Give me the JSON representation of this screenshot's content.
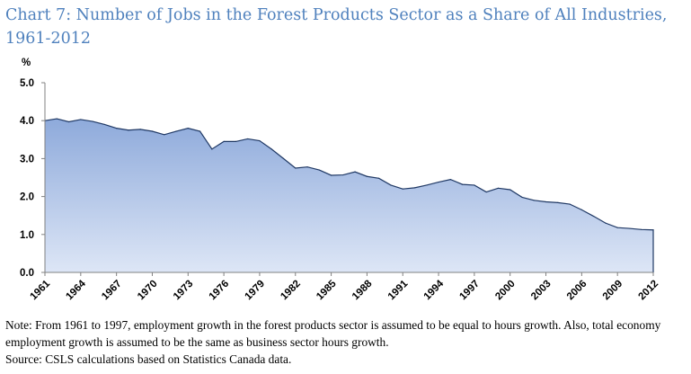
{
  "title": "Chart 7: Number of Jobs in the Forest Products Sector as a Share of All Industries, 1961-2012",
  "note": {
    "line1": "Note: From 1961 to 1997, employment growth in the forest products sector is assumed to be equal to hours growth. Also, total economy employment growth is assumed to be the same as business sector hours growth.",
    "source": "Source: CSLS calculations based on Statistics Canada data."
  },
  "colors": {
    "fill_top": "#8eaadb",
    "fill_bottom": "#dde6f6",
    "line": "#1f3864",
    "title": "#4f81bd"
  },
  "chart_data": {
    "type": "area",
    "ylabel": "%",
    "xlabel": "",
    "ylim": [
      0,
      5
    ],
    "yticks": [
      "0.0",
      "1.0",
      "2.0",
      "3.0",
      "4.0",
      "5.0"
    ],
    "xticks": [
      "1961",
      "1964",
      "1967",
      "1970",
      "1973",
      "1976",
      "1979",
      "1982",
      "1985",
      "1988",
      "1991",
      "1994",
      "1997",
      "2000",
      "2003",
      "2006",
      "2009",
      "2012"
    ],
    "grid": false,
    "legend": "none",
    "x": [
      1961,
      1962,
      1963,
      1964,
      1965,
      1966,
      1967,
      1968,
      1969,
      1970,
      1971,
      1972,
      1973,
      1974,
      1975,
      1976,
      1977,
      1978,
      1979,
      1980,
      1981,
      1982,
      1983,
      1984,
      1985,
      1986,
      1987,
      1988,
      1989,
      1990,
      1991,
      1992,
      1993,
      1994,
      1995,
      1996,
      1997,
      1998,
      1999,
      2000,
      2001,
      2002,
      2003,
      2004,
      2005,
      2006,
      2007,
      2008,
      2009,
      2010,
      2011,
      2012
    ],
    "values": [
      4.0,
      4.05,
      3.97,
      4.03,
      3.98,
      3.9,
      3.8,
      3.75,
      3.77,
      3.72,
      3.63,
      3.72,
      3.8,
      3.72,
      3.25,
      3.45,
      3.45,
      3.52,
      3.47,
      3.25,
      3.0,
      2.75,
      2.78,
      2.7,
      2.56,
      2.57,
      2.65,
      2.53,
      2.48,
      2.3,
      2.2,
      2.23,
      2.3,
      2.38,
      2.45,
      2.32,
      2.3,
      2.12,
      2.22,
      2.18,
      1.98,
      1.9,
      1.86,
      1.84,
      1.8,
      1.65,
      1.48,
      1.3,
      1.18,
      1.16,
      1.13,
      1.12
    ]
  }
}
